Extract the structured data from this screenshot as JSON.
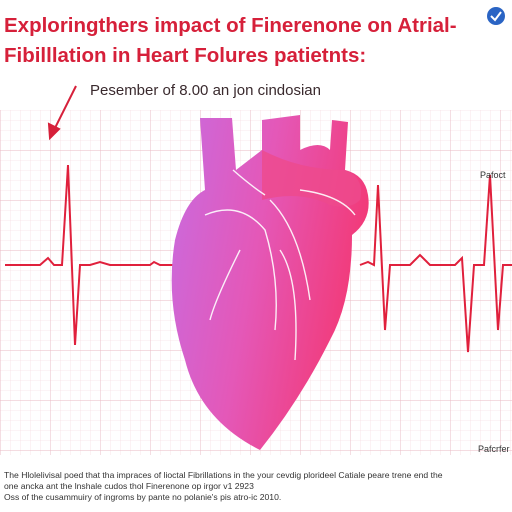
{
  "header": {
    "title_lines": [
      "Exploringthers impact of Finerenone on Atrial-",
      "Fibilllation in Heart Folures patietnts:"
    ],
    "subtitle": "Pesember of 8.00 an jon cindosian"
  },
  "labels": {
    "trace": "Pafoct",
    "corner": "Pafcrfer"
  },
  "footer": {
    "lines": [
      "The Hlolelivisal poed that tha impraces of lioctal Fibrillations in the your cevdig plorideel Catiale peare trene end the",
      "one ancka ant the lnshale cudos thol Finerenone op irgor v1 2923",
      "Oss of the cusammuiry of ingroms by pante no polanie's pis atro-ic 2010."
    ]
  }
}
